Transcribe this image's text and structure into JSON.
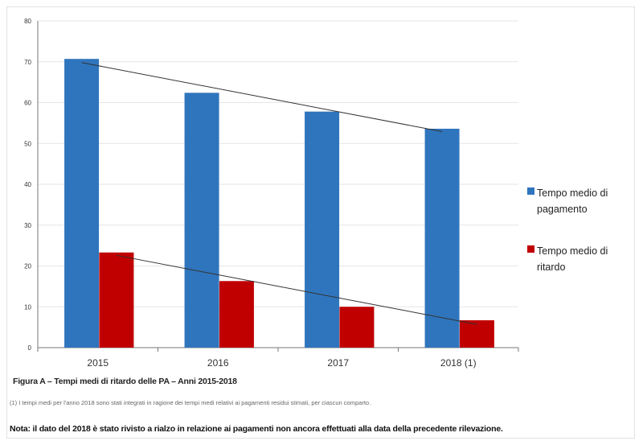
{
  "chart_data": {
    "type": "bar",
    "title": "Figura A – Tempi medi di ritardo delle PA – Anni 2015-2018",
    "categories": [
      "2015",
      "2016",
      "2017",
      "2018 (1)"
    ],
    "series": [
      {
        "name": "Tempo medio di pagamento",
        "color": "#2f75bd",
        "values": [
          70.7,
          62.4,
          57.8,
          53.6
        ]
      },
      {
        "name": "Tempo medio di ritardo",
        "color": "#c00000",
        "values": [
          23.3,
          16.3,
          10.0,
          6.7
        ]
      }
    ],
    "trendlines": [
      {
        "series": "Tempo medio di pagamento",
        "start": 69.8,
        "end": 52.9
      },
      {
        "series": "Tempo medio di ritardo",
        "start": 22.6,
        "end": 5.7
      }
    ],
    "ylim": [
      0,
      80
    ],
    "yticks": [
      "0",
      "10",
      "20",
      "30",
      "40",
      "50",
      "60",
      "70",
      "80"
    ],
    "grid": true,
    "legend_position": "right"
  },
  "legend": {
    "item1_line1": "Tempo medio di",
    "item1_line2": "pagamento",
    "item2": "Tempo medio di ritardo"
  },
  "caption": "Figura A – Tempi medi di ritardo delle PA – Anni 2015-2018",
  "footnote": "(1) I tempi medi per l'anno 2018 sono stati integrati in ragione dei tempi medi relativi ai pagamenti residui stimati, per ciascun comparto.",
  "note": "Nota: il dato del 2018 è stato rivisto a rialzo in relazione ai pagamenti non ancora effettuati alla data della precedente rilevazione."
}
